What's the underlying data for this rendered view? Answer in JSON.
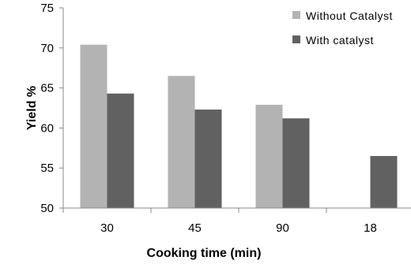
{
  "chart_data": {
    "type": "bar",
    "title": "",
    "xlabel": "Cooking time (min)",
    "ylabel": "Yield %",
    "categories": [
      "30",
      "45",
      "90",
      "18"
    ],
    "ylim": [
      50,
      75
    ],
    "yticks": [
      "50",
      "55",
      "60",
      "65",
      "70",
      "75"
    ],
    "grid": false,
    "legend_position": "top-right",
    "series": [
      {
        "name": "Without Catalyst",
        "color": "#b3b3b3",
        "values": [
          70.4,
          66.5,
          62.9,
          null
        ]
      },
      {
        "name": "With catalyst",
        "color": "#616161",
        "values": [
          64.3,
          62.3,
          61.2,
          56.5
        ]
      }
    ]
  }
}
